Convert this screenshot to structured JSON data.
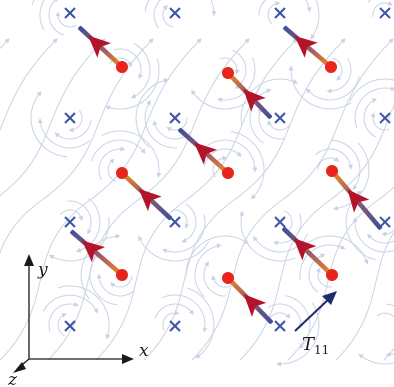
{
  "axes": {
    "x_label": "x",
    "y_label": "y",
    "z_label": "z"
  },
  "annotation": {
    "symbol": "T",
    "subscript": "11"
  },
  "colors": {
    "background": "#ffffff",
    "flow_lines": "#c9d2e6",
    "cross_marks": "#3a55a8",
    "dots": "#e8241c",
    "rod_orange": "#f08a1c",
    "rod_blue": "#3e4f9a",
    "arrowhead": "#b3142a",
    "axis": "#1a1a1a",
    "annotation_arrow": "#1f2c6b"
  },
  "legend_icons": [
    "cross-icon",
    "dot-icon",
    "rod-arrow-icon"
  ]
}
